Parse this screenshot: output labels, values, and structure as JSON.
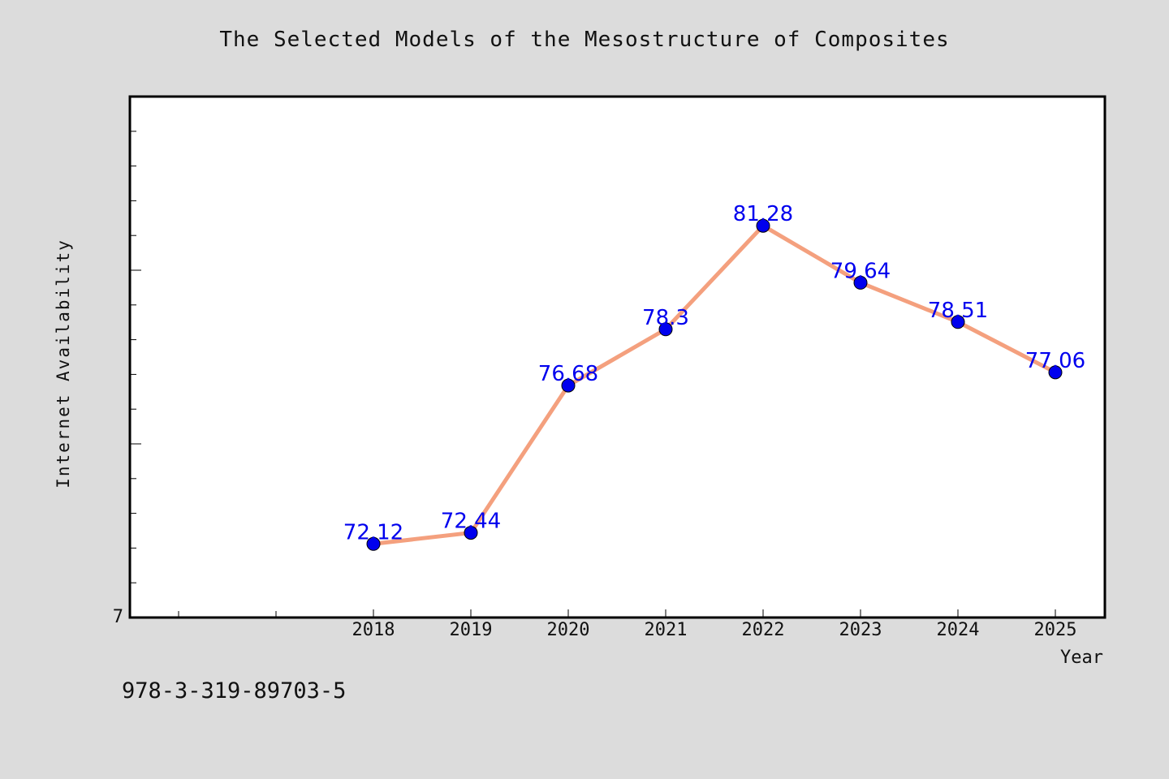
{
  "chart_data": {
    "type": "line",
    "title": "The Selected Models of the Mesostructure of Composites",
    "xlabel": "Year",
    "ylabel": "Internet Availability",
    "categories": [
      "2018",
      "2019",
      "2020",
      "2021",
      "2022",
      "2023",
      "2024",
      "2025"
    ],
    "series": [
      {
        "values": [
          72.12,
          72.44,
          76.68,
          78.3,
          81.28,
          79.64,
          78.51,
          77.06
        ],
        "labels": [
          "72.12",
          "72.44",
          "76.68",
          "78.3",
          "81.28",
          "79.64",
          "78.51",
          "77.06"
        ]
      }
    ],
    "y_tick_label": "7",
    "ylim": [
      70,
      85
    ],
    "grid": false,
    "line_color": "#f4a07e",
    "marker_color": "#0000ee",
    "label_color": "#0000ee"
  },
  "footer": {
    "isbn": "978-3-319-89703-5"
  }
}
